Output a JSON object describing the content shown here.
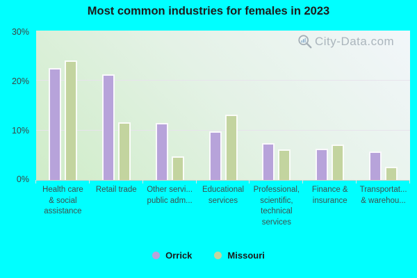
{
  "title": "Most common industries for females in 2023",
  "watermark": "City-Data.com",
  "y_axis": {
    "ticks": [
      "30%",
      "20%",
      "10%",
      "0%"
    ]
  },
  "chart_data": {
    "type": "bar",
    "title": "Most common industries for females in 2023",
    "categories": [
      "Health care & social assistance",
      "Retail trade",
      "Other servi... public adm...",
      "Educational services",
      "Professional, scientific, technical services",
      "Finance & insurance",
      "Transportat... & warehou..."
    ],
    "categories_display": [
      [
        "Health care",
        "& social",
        "assistance"
      ],
      [
        "Retail trade"
      ],
      [
        "Other servi...",
        "public adm..."
      ],
      [
        "Educational",
        "services"
      ],
      [
        "Professional,",
        "scientific,",
        "technical",
        "services"
      ],
      [
        "Finance &",
        "insurance"
      ],
      [
        "Transportat...",
        "& warehou..."
      ]
    ],
    "series": [
      {
        "name": "Orrick",
        "color": "#b7a3da",
        "values": [
          22.5,
          21.2,
          11.5,
          9.8,
          7.4,
          6.3,
          5.7
        ]
      },
      {
        "name": "Missouri",
        "color": "#c3d49f",
        "values": [
          24.0,
          11.6,
          4.7,
          13.1,
          6.1,
          7.1,
          2.7
        ]
      }
    ],
    "ylim": [
      0,
      30
    ],
    "y_tick_labels": [
      "0%",
      "10%",
      "20%",
      "30%"
    ],
    "xlabel": "",
    "ylabel": "",
    "grid": true,
    "legend_position": "bottom"
  },
  "colors": {
    "background": "#00ffff",
    "orrick": "#b7a3da",
    "missouri": "#c3d49f"
  }
}
